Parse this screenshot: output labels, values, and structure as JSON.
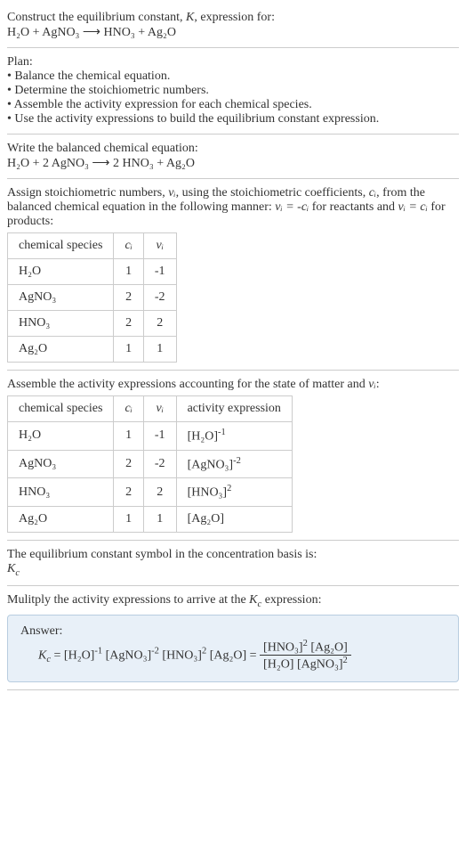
{
  "intro": {
    "line1_pre": "Construct the equilibrium constant, ",
    "K": "K",
    "line1_post": ", expression for:",
    "eq": "H₂O + AgNO₃  ⟶  HNO₃ + Ag₂O"
  },
  "plan": {
    "title": "Plan:",
    "b1": "• Balance the chemical equation.",
    "b2": "• Determine the stoichiometric numbers.",
    "b3": "• Assemble the activity expression for each chemical species.",
    "b4": "• Use the activity expressions to build the equilibrium constant expression."
  },
  "balanced": {
    "title": "Write the balanced chemical equation:",
    "eq": "H₂O + 2 AgNO₃  ⟶  2 HNO₃ + Ag₂O"
  },
  "assign": {
    "text1": "Assign stoichiometric numbers, ",
    "nu_i": "νᵢ",
    "text2": ", using the stoichiometric coefficients, ",
    "c_i": "cᵢ",
    "text3": ", from the balanced chemical equation in the following manner: ",
    "rel1": "νᵢ = -cᵢ",
    "text4": " for reactants and ",
    "rel2": "νᵢ = cᵢ",
    "text5": " for products:"
  },
  "table1": {
    "headers": [
      "chemical species",
      "cᵢ",
      "νᵢ"
    ],
    "rows": [
      [
        "H₂O",
        "1",
        "-1"
      ],
      [
        "AgNO₃",
        "2",
        "-2"
      ],
      [
        "HNO₃",
        "2",
        "2"
      ],
      [
        "Ag₂O",
        "1",
        "1"
      ]
    ]
  },
  "assemble": {
    "text1": "Assemble the activity expressions accounting for the state of matter and ",
    "nu_i": "νᵢ",
    "text2": ":"
  },
  "table2": {
    "headers": [
      "chemical species",
      "cᵢ",
      "νᵢ",
      "activity expression"
    ],
    "rows": [
      {
        "sp": "H₂O",
        "c": "1",
        "v": "-1",
        "base": "[H₂O]",
        "exp": "-1"
      },
      {
        "sp": "AgNO₃",
        "c": "2",
        "v": "-2",
        "base": "[AgNO₃]",
        "exp": "-2"
      },
      {
        "sp": "HNO₃",
        "c": "2",
        "v": "2",
        "base": "[HNO₃]",
        "exp": "2"
      },
      {
        "sp": "Ag₂O",
        "c": "1",
        "v": "1",
        "base": "[Ag₂O]",
        "exp": ""
      }
    ]
  },
  "symbol": {
    "text": "The equilibrium constant symbol in the concentration basis is:",
    "Kc_K": "K",
    "Kc_c": "c"
  },
  "multiply": {
    "text1": "Mulitply the activity expressions to arrive at the ",
    "Kc_K": "K",
    "Kc_c": "c",
    "text2": " expression:"
  },
  "answer": {
    "label": "Answer:",
    "lhs_K": "K",
    "lhs_c": "c",
    "eq": " = ",
    "t1_base": "[H₂O]",
    "t1_exp": "-1",
    "t2_base": "[AgNO₃]",
    "t2_exp": "-2",
    "t3_base": "[HNO₃]",
    "t3_exp": "2",
    "t4_base": "[Ag₂O]",
    "eq2": " = ",
    "num1_base": "[HNO₃]",
    "num1_exp": "2",
    "num2_base": "[Ag₂O]",
    "den1_base": "[H₂O]",
    "den2_base": "[AgNO₃]",
    "den2_exp": "2"
  },
  "colors": {
    "answer_bg": "#e8f0f8",
    "answer_border": "#b8cde0",
    "cell_border": "#cccccc",
    "text": "#333333"
  }
}
